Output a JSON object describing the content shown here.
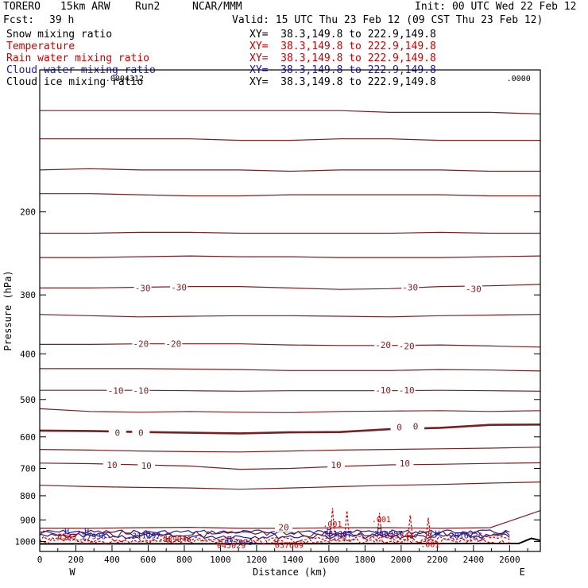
{
  "header": {
    "model": "TORERO",
    "resolution": "15km ARW",
    "run": "Run2",
    "org": "NCAR/MMM",
    "init": "Init: 00 UTC Wed 22 Feb 12",
    "fcst_label": "Fcst:",
    "fcst_value": "39 h",
    "valid": "Valid: 15 UTC Thu 23 Feb 12 (09 CST Thu 23 Feb 12)"
  },
  "fields": [
    {
      "label": "Snow mixing ratio",
      "xy": "XY=  38.3,149.8 to 222.9,149.8",
      "color": "#000000"
    },
    {
      "label": "Temperature",
      "xy": "XY=  38.3,149.8 to 222.9,149.8",
      "color": "#cc0000"
    },
    {
      "label": "Rain water mixing ratio",
      "xy": "XY=  38.3,149.8 to 222.9,149.8",
      "color": "#cc0000"
    },
    {
      "label": "Cloud water mixing ratio",
      "xy": "XY=  38.3,149.8 to 222.9,149.8",
      "color": "#1a1aa6"
    },
    {
      "label": "Cloud ice mixing ratio",
      "xy": "XY=  38.3,149.8 to 222.9,149.8",
      "color": "#000000"
    }
  ],
  "chart_data": {
    "type": "contour cross-section",
    "xlabel": "Distance (km)",
    "ylabel": "Pressure (hPa)",
    "x_ticks": [
      0,
      200,
      400,
      600,
      800,
      1000,
      1200,
      1400,
      1600,
      1800,
      2000,
      2200,
      2400,
      2600
    ],
    "y_ticks": [
      200,
      300,
      400,
      500,
      600,
      700,
      800,
      900,
      1000
    ],
    "xlim": [
      0,
      2770
    ],
    "ylim": [
      100,
      1050
    ],
    "y_scale": "log",
    "left_endpoint": "W",
    "right_endpoint": "E",
    "temperature_contours": [
      {
        "value": -60,
        "p": [
          122,
          122,
          122,
          122,
          122,
          122,
          122,
          123,
          123,
          123,
          124
        ]
      },
      {
        "value": -55,
        "p": [
          140,
          140,
          140,
          140,
          141,
          141,
          140,
          140,
          141,
          141,
          141
        ]
      },
      {
        "value": -50,
        "p": [
          163,
          162,
          163,
          163,
          163,
          164,
          163,
          163,
          163,
          164,
          164
        ]
      },
      {
        "value": -45,
        "p": [
          183,
          183,
          184,
          185,
          185,
          184,
          184,
          184,
          184,
          185,
          185
        ]
      },
      {
        "value": -40,
        "p": [
          222,
          222,
          221,
          221,
          222,
          222,
          222,
          222,
          221,
          222,
          222
        ]
      },
      {
        "value": -35,
        "p": [
          250,
          250,
          249,
          248,
          249,
          249,
          250,
          250,
          250,
          249,
          248
        ]
      },
      {
        "value": -30,
        "p": [
          290,
          290,
          289,
          288,
          288,
          290,
          292,
          291,
          288,
          287,
          285
        ]
      },
      {
        "value": -25,
        "p": [
          330,
          332,
          334,
          333,
          332,
          332,
          333,
          334,
          332,
          331,
          330
        ]
      },
      {
        "value": -20,
        "p": [
          382,
          382,
          381,
          381,
          381,
          383,
          384,
          384,
          383,
          385,
          387
        ]
      },
      {
        "value": -15,
        "p": [
          430,
          430,
          430,
          431,
          432,
          434,
          434,
          434,
          432,
          433,
          435
        ]
      },
      {
        "value": -10,
        "p": [
          478,
          478,
          478,
          479,
          480,
          479,
          479,
          479,
          478,
          479,
          480
        ]
      },
      {
        "value": -5,
        "p": [
          523,
          530,
          532,
          530,
          532,
          533,
          530,
          529,
          528,
          530,
          528
        ]
      },
      {
        "value": 0,
        "p": [
          582,
          583,
          586,
          588,
          590,
          587,
          586,
          578,
          574,
          566,
          565
        ]
      },
      {
        "value": 5,
        "p": [
          638,
          640,
          643,
          645,
          646,
          643,
          640,
          638,
          636,
          634,
          631
        ]
      },
      {
        "value": 10,
        "p": [
          682,
          684,
          688,
          692,
          703,
          700,
          693,
          688,
          686,
          683,
          681
        ]
      },
      {
        "value": 15,
        "p": [
          760,
          765,
          768,
          770,
          775,
          770,
          765,
          760,
          757,
          752,
          748
        ]
      },
      {
        "value": 20,
        "p": [
          938,
          938,
          935,
          933,
          938,
          938,
          935,
          935,
          938,
          935,
          860
        ]
      }
    ],
    "temperature_contour_x": [
      0,
      277,
      554,
      831,
      1108,
      1385,
      1662,
      1939,
      2216,
      2493,
      2770
    ],
    "temperature_labels": [
      {
        "text": "-30",
        "x": 570,
        "p": 290
      },
      {
        "text": "-30",
        "x": 770,
        "p": 289
      },
      {
        "text": "-30",
        "x": 2050,
        "p": 289
      },
      {
        "text": "-30",
        "x": 2400,
        "p": 291
      },
      {
        "text": "-20",
        "x": 560,
        "p": 381
      },
      {
        "text": "-20",
        "x": 740,
        "p": 381
      },
      {
        "text": "-20",
        "x": 1900,
        "p": 383
      },
      {
        "text": "-20",
        "x": 2030,
        "p": 385
      },
      {
        "text": "-10",
        "x": 420,
        "p": 479
      },
      {
        "text": "-10",
        "x": 560,
        "p": 479
      },
      {
        "text": "-10",
        "x": 1900,
        "p": 478
      },
      {
        "text": "-10",
        "x": 2030,
        "p": 478
      },
      {
        "text": "0",
        "x": 430,
        "p": 588
      },
      {
        "text": "0",
        "x": 560,
        "p": 588
      },
      {
        "text": "0",
        "x": 1990,
        "p": 572
      },
      {
        "text": "0",
        "x": 2080,
        "p": 570
      },
      {
        "text": "10",
        "x": 400,
        "p": 688
      },
      {
        "text": "10",
        "x": 590,
        "p": 690
      },
      {
        "text": "10",
        "x": 1640,
        "p": 688
      },
      {
        "text": "10",
        "x": 2020,
        "p": 682
      },
      {
        "text": "20",
        "x": 1350,
        "p": 933
      }
    ],
    "small_labels": [
      {
        "text": ".0004312",
        "x": 470,
        "p": 104,
        "color": "#000000"
      },
      {
        "text": ".0000",
        "x": 2650,
        "p": 104,
        "color": "#000000"
      },
      {
        "text": ".001",
        "x": 1620,
        "p": 917,
        "color": "#cc0000"
      },
      {
        "text": ".001",
        "x": 1890,
        "p": 896,
        "color": "#cc0000"
      },
      {
        "text": ".00",
        "x": 1660,
        "p": 972,
        "color": "#cc0000"
      },
      {
        "text": ".001",
        "x": 2160,
        "p": 1012,
        "color": "#cc0000"
      },
      {
        "text": "0523",
        "x": 150,
        "p": 973,
        "color": "#cc0000"
      },
      {
        "text": "27936",
        "x": 300,
        "p": 973,
        "color": "#1a1aa6"
      },
      {
        "text": "311297",
        "x": 590,
        "p": 970,
        "color": "#1a1aa6"
      },
      {
        "text": "189946",
        "x": 760,
        "p": 987,
        "color": "#cc0000"
      },
      {
        "text": "077979",
        "x": 1100,
        "p": 1003,
        "color": "#1a1aa6"
      },
      {
        "text": "045029",
        "x": 1060,
        "p": 1017,
        "color": "#cc0000"
      },
      {
        "text": "037609",
        "x": 1380,
        "p": 1015,
        "color": "#cc0000"
      },
      {
        "text": "281367",
        "x": 1650,
        "p": 960,
        "color": "#1a1aa6"
      },
      {
        "text": "300987",
        "x": 1930,
        "p": 960,
        "color": "#1a1aa6"
      },
      {
        "text": "023741",
        "x": 1990,
        "p": 970,
        "color": "#cc0000"
      },
      {
        "text": "2816726",
        "x": 2360,
        "p": 970,
        "color": "#1a1aa6"
      },
      {
        "text": "H",
        "x": 1600,
        "p": 943,
        "color": "#1a1aa6"
      },
      {
        "text": "H",
        "x": 1880,
        "p": 940,
        "color": "#1a1aa6"
      },
      {
        "text": "H",
        "x": 2200,
        "p": 958,
        "color": "#1a1aa6"
      },
      {
        "text": "H",
        "x": 1050,
        "p": 985,
        "color": "#1a1aa6"
      },
      {
        "text": "H",
        "x": 1000,
        "p": 1000,
        "color": "#cc0000"
      },
      {
        "text": "H",
        "x": 1310,
        "p": 1000,
        "color": "#cc0000"
      },
      {
        "text": "H",
        "x": 260,
        "p": 950,
        "color": "#1a1aa6"
      },
      {
        "text": "H",
        "x": 150,
        "p": 950,
        "color": "#1a1aa6"
      },
      {
        "text": "H",
        "x": 600,
        "p": 963,
        "color": "#1a1aa6"
      },
      {
        "text": "H",
        "x": 710,
        "p": 985,
        "color": "#cc0000"
      },
      {
        "text": "H",
        "x": 2160,
        "p": 960,
        "color": "#cc0000"
      }
    ]
  }
}
